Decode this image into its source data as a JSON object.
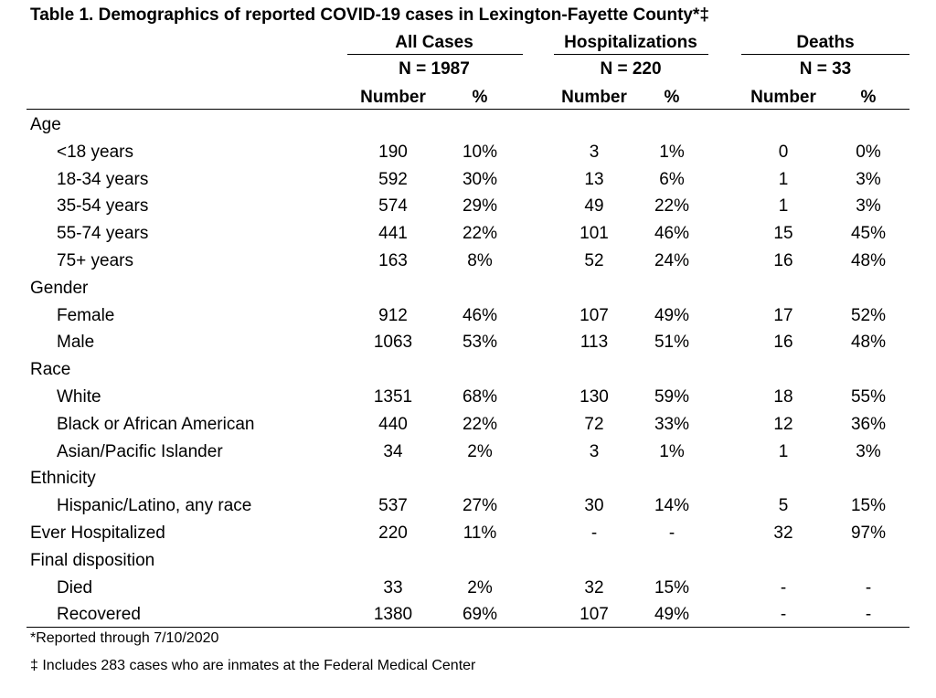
{
  "title": "Table 1. Demographics of reported COVID-19 cases in Lexington-Fayette County*‡",
  "groups": [
    {
      "label": "All Cases",
      "n": "N = 1987"
    },
    {
      "label": "Hospitalizations",
      "n": "N = 220"
    },
    {
      "label": "Deaths",
      "n": "N = 33"
    }
  ],
  "col_headers": [
    "Number",
    "%",
    "Number",
    "%",
    "Number",
    "%"
  ],
  "rows": [
    {
      "label": "Age",
      "indent": false,
      "values": [
        "",
        "",
        "",
        "",
        "",
        ""
      ]
    },
    {
      "label": "<18 years",
      "indent": true,
      "values": [
        "190",
        "10%",
        "3",
        "1%",
        "0",
        "0%"
      ]
    },
    {
      "label": "18-34 years",
      "indent": true,
      "values": [
        "592",
        "30%",
        "13",
        "6%",
        "1",
        "3%"
      ]
    },
    {
      "label": "35-54 years",
      "indent": true,
      "values": [
        "574",
        "29%",
        "49",
        "22%",
        "1",
        "3%"
      ]
    },
    {
      "label": "55-74 years",
      "indent": true,
      "values": [
        "441",
        "22%",
        "101",
        "46%",
        "15",
        "45%"
      ]
    },
    {
      "label": "75+ years",
      "indent": true,
      "values": [
        "163",
        "8%",
        "52",
        "24%",
        "16",
        "48%"
      ]
    },
    {
      "label": "Gender",
      "indent": false,
      "values": [
        "",
        "",
        "",
        "",
        "",
        ""
      ]
    },
    {
      "label": "Female",
      "indent": true,
      "values": [
        "912",
        "46%",
        "107",
        "49%",
        "17",
        "52%"
      ]
    },
    {
      "label": "Male",
      "indent": true,
      "values": [
        "1063",
        "53%",
        "113",
        "51%",
        "16",
        "48%"
      ]
    },
    {
      "label": "Race",
      "indent": false,
      "values": [
        "",
        "",
        "",
        "",
        "",
        ""
      ]
    },
    {
      "label": "White",
      "indent": true,
      "values": [
        "1351",
        "68%",
        "130",
        "59%",
        "18",
        "55%"
      ]
    },
    {
      "label": "Black or African American",
      "indent": true,
      "values": [
        "440",
        "22%",
        "72",
        "33%",
        "12",
        "36%"
      ]
    },
    {
      "label": "Asian/Pacific Islander",
      "indent": true,
      "values": [
        "34",
        "2%",
        "3",
        "1%",
        "1",
        "3%"
      ]
    },
    {
      "label": "Ethnicity",
      "indent": false,
      "values": [
        "",
        "",
        "",
        "",
        "",
        ""
      ]
    },
    {
      "label": "Hispanic/Latino, any race",
      "indent": true,
      "values": [
        "537",
        "27%",
        "30",
        "14%",
        "5",
        "15%"
      ]
    },
    {
      "label": "Ever Hospitalized",
      "indent": false,
      "values": [
        "220",
        "11%",
        "-",
        "-",
        "32",
        "97%"
      ]
    },
    {
      "label": "Final disposition",
      "indent": false,
      "values": [
        "",
        "",
        "",
        "",
        "",
        ""
      ]
    },
    {
      "label": "Died",
      "indent": true,
      "values": [
        "33",
        "2%",
        "32",
        "15%",
        "-",
        "-"
      ]
    },
    {
      "label": "Recovered",
      "indent": true,
      "values": [
        "1380",
        "69%",
        "107",
        "49%",
        "-",
        "-"
      ]
    }
  ],
  "footnotes": [
    "*Reported through 7/10/2020",
    "‡ Includes 283 cases who are inmates at the Federal Medical Center"
  ]
}
